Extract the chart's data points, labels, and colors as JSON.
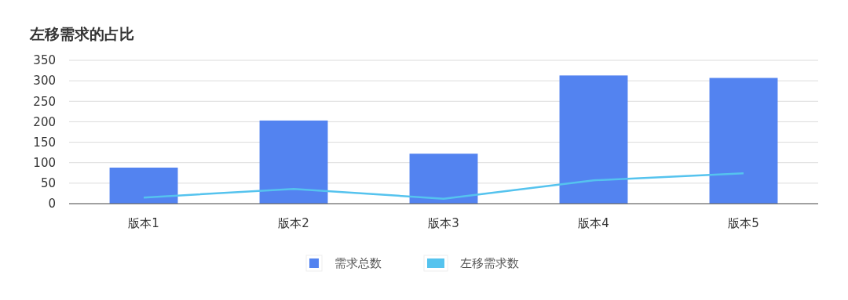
{
  "chart_data": {
    "type": "bar",
    "title": "左移需求的占比",
    "categories": [
      "版本1",
      "版本2",
      "版本3",
      "版本4",
      "版本5"
    ],
    "series": [
      {
        "name": "需求总数",
        "color": "#5383f0",
        "values": [
          88,
          203,
          122,
          313,
          307
        ]
      },
      {
        "name": "左移需求数",
        "type": "line",
        "color": "#55c3ee",
        "values": [
          15,
          36,
          12,
          57,
          74
        ]
      }
    ],
    "ylim": [
      0,
      350
    ],
    "yticks": [
      0,
      50,
      100,
      150,
      200,
      250,
      300,
      350
    ],
    "grid": "y",
    "legend": "bottom",
    "marker": "none"
  }
}
